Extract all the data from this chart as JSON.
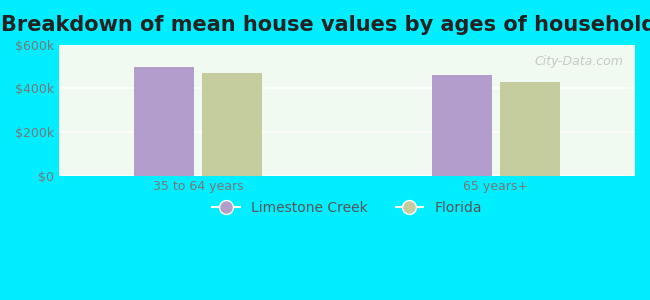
{
  "title": "Breakdown of mean house values by ages of householders",
  "categories": [
    "35 to 64 years",
    "65 years+"
  ],
  "series": {
    "Limestone Creek": [
      500000,
      460000
    ],
    "Florida": [
      470000,
      430000
    ]
  },
  "bar_colors": {
    "Limestone Creek": "#b39dcc",
    "Florida": "#c5cc9d"
  },
  "ylim": [
    0,
    600000
  ],
  "yticks": [
    0,
    200000,
    400000,
    600000
  ],
  "ytick_labels": [
    "$0",
    "$200k",
    "$400k",
    "$600k"
  ],
  "background_color": "#00eeff",
  "plot_bg_color": "#f0faf0",
  "title_fontsize": 15,
  "tick_fontsize": 9,
  "legend_fontsize": 10,
  "bar_width": 0.3,
  "watermark": "City-Data.com"
}
